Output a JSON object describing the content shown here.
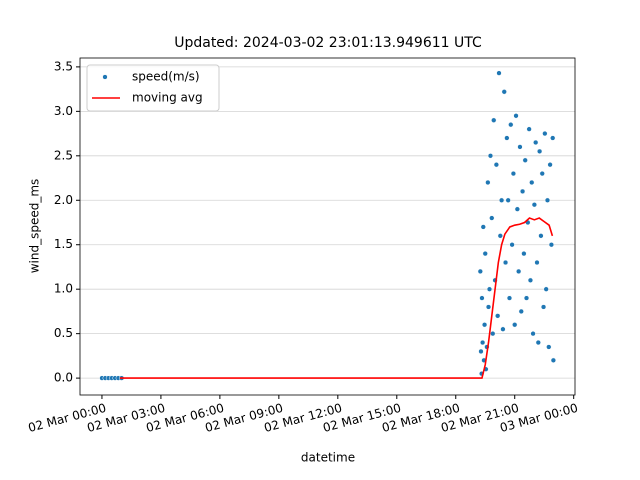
{
  "chart_data": {
    "type": "scatter_line",
    "title": "Updated: 2024-03-02 23:01:13.949611 UTC",
    "xlabel": "datetime",
    "ylabel": "wind_speed_ms",
    "grid": "y",
    "legend": "upper left",
    "xlim": [
      "2024-03-01T22:53",
      "2024-03-03T00:04"
    ],
    "ylim": [
      -0.19,
      3.6
    ],
    "xticks": [
      {
        "value": "2024-03-02T00:00",
        "label": "02 Mar 00:00"
      },
      {
        "value": "2024-03-02T03:00",
        "label": "02 Mar 03:00"
      },
      {
        "value": "2024-03-02T06:00",
        "label": "02 Mar 06:00"
      },
      {
        "value": "2024-03-02T09:00",
        "label": "02 Mar 09:00"
      },
      {
        "value": "2024-03-02T12:00",
        "label": "02 Mar 12:00"
      },
      {
        "value": "2024-03-02T15:00",
        "label": "02 Mar 15:00"
      },
      {
        "value": "2024-03-02T18:00",
        "label": "02 Mar 18:00"
      },
      {
        "value": "2024-03-02T21:00",
        "label": "02 Mar 21:00"
      },
      {
        "value": "2024-03-03T00:00",
        "label": "03 Mar 00:00"
      }
    ],
    "yticks": [
      {
        "value": 0,
        "label": "0.0"
      },
      {
        "value": 0.5,
        "label": "0.5"
      },
      {
        "value": 1,
        "label": "1.0"
      },
      {
        "value": 1.5,
        "label": "1.5"
      },
      {
        "value": 2,
        "label": "2.0"
      },
      {
        "value": 2.5,
        "label": "2.5"
      },
      {
        "value": 3,
        "label": "3.0"
      },
      {
        "value": 3.5,
        "label": "3.5"
      }
    ],
    "series": [
      {
        "name": "speed(m/s)",
        "kind": "scatter",
        "color": "#1f77b4",
        "x": [
          "2024-03-02T00:00",
          "2024-03-02T00:10",
          "2024-03-02T00:20",
          "2024-03-02T00:30",
          "2024-03-02T00:40",
          "2024-03-02T00:50",
          "2024-03-02T01:00",
          "2024-03-02T19:15",
          "2024-03-02T19:17",
          "2024-03-02T19:19",
          "2024-03-02T19:20",
          "2024-03-02T19:22",
          "2024-03-02T19:24",
          "2024-03-02T19:26",
          "2024-03-02T19:28",
          "2024-03-02T19:30",
          "2024-03-02T19:32",
          "2024-03-02T19:35",
          "2024-03-02T19:38",
          "2024-03-02T19:40",
          "2024-03-02T19:43",
          "2024-03-02T19:46",
          "2024-03-02T19:50",
          "2024-03-02T19:53",
          "2024-03-02T19:56",
          "2024-03-02T20:00",
          "2024-03-02T20:04",
          "2024-03-02T20:08",
          "2024-03-02T20:12",
          "2024-03-02T20:16",
          "2024-03-02T20:20",
          "2024-03-02T20:24",
          "2024-03-02T20:28",
          "2024-03-02T20:32",
          "2024-03-02T20:36",
          "2024-03-02T20:40",
          "2024-03-02T20:44",
          "2024-03-02T20:48",
          "2024-03-02T20:52",
          "2024-03-02T20:56",
          "2024-03-02T21:00",
          "2024-03-02T21:04",
          "2024-03-02T21:08",
          "2024-03-02T21:12",
          "2024-03-02T21:16",
          "2024-03-02T21:20",
          "2024-03-02T21:24",
          "2024-03-02T21:28",
          "2024-03-02T21:32",
          "2024-03-02T21:36",
          "2024-03-02T21:40",
          "2024-03-02T21:44",
          "2024-03-02T21:48",
          "2024-03-02T21:52",
          "2024-03-02T21:56",
          "2024-03-02T22:00",
          "2024-03-02T22:04",
          "2024-03-02T22:08",
          "2024-03-02T22:12",
          "2024-03-02T22:16",
          "2024-03-02T22:20",
          "2024-03-02T22:24",
          "2024-03-02T22:28",
          "2024-03-02T22:32",
          "2024-03-02T22:36",
          "2024-03-02T22:40",
          "2024-03-02T22:44",
          "2024-03-02T22:48",
          "2024-03-02T22:52",
          "2024-03-02T22:56",
          "2024-03-02T22:58"
        ],
        "values": [
          0,
          0,
          0,
          0,
          0,
          0,
          0,
          1.2,
          0.3,
          0.05,
          0.9,
          0.4,
          1.7,
          0.2,
          0.6,
          1.4,
          0.1,
          0.35,
          2.2,
          0.8,
          1.0,
          2.5,
          1.8,
          0.5,
          2.9,
          1.1,
          2.4,
          0.7,
          3.43,
          1.6,
          2.0,
          0.55,
          3.22,
          1.3,
          2.7,
          2.0,
          0.9,
          2.85,
          1.5,
          2.3,
          0.6,
          2.95,
          1.9,
          1.2,
          2.6,
          0.75,
          2.1,
          1.4,
          2.45,
          0.9,
          1.75,
          2.8,
          1.1,
          2.2,
          0.5,
          1.95,
          2.65,
          1.3,
          0.4,
          2.55,
          1.6,
          2.3,
          0.8,
          2.75,
          1.0,
          2.0,
          0.35,
          2.4,
          1.5,
          2.7,
          0.2
        ]
      },
      {
        "name": "moving avg",
        "kind": "line",
        "color": "#ff0000",
        "x": [
          "2024-03-02T00:55",
          "2024-03-02T19:20",
          "2024-03-02T19:30",
          "2024-03-02T19:40",
          "2024-03-02T19:50",
          "2024-03-02T20:00",
          "2024-03-02T20:10",
          "2024-03-02T20:20",
          "2024-03-02T20:30",
          "2024-03-02T20:45",
          "2024-03-02T21:00",
          "2024-03-02T21:15",
          "2024-03-02T21:30",
          "2024-03-02T21:45",
          "2024-03-02T22:00",
          "2024-03-02T22:15",
          "2024-03-02T22:30",
          "2024-03-02T22:45",
          "2024-03-02T22:55"
        ],
        "values": [
          0,
          0,
          0.15,
          0.4,
          0.7,
          1.0,
          1.3,
          1.5,
          1.62,
          1.7,
          1.72,
          1.73,
          1.75,
          1.8,
          1.78,
          1.8,
          1.76,
          1.72,
          1.6
        ]
      }
    ]
  }
}
